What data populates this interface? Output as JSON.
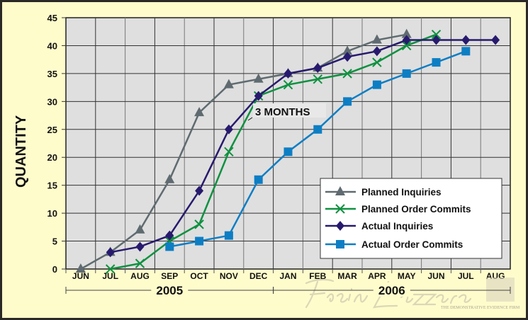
{
  "chart_data": {
    "type": "line",
    "title": "",
    "ylabel": "QUANTITY",
    "xlabel": "",
    "ylim": [
      0,
      45
    ],
    "yticks": [
      0,
      5,
      10,
      15,
      20,
      25,
      30,
      35,
      40,
      45
    ],
    "grid": true,
    "legend_position": "bottom-right",
    "categories": [
      "JUN",
      "JUL",
      "AUG",
      "SEP",
      "OCT",
      "NOV",
      "DEC",
      "JAN",
      "FEB",
      "MAR",
      "APR",
      "MAY",
      "JUN",
      "JUL",
      "AUG"
    ],
    "year_groups": [
      {
        "label": "2005",
        "from": "JUN",
        "to": "DEC"
      },
      {
        "label": "2006",
        "from": "JAN",
        "to": "AUG"
      }
    ],
    "series": [
      {
        "name": "Planned Inquiries",
        "marker": "triangle",
        "color": "#5f6b70",
        "values": [
          0,
          3,
          7,
          16,
          28,
          33,
          34,
          35,
          36,
          39,
          41,
          42,
          null,
          null,
          null
        ]
      },
      {
        "name": "Planned Order Commits",
        "marker": "x",
        "color": "#0f9140",
        "values": [
          null,
          0,
          1,
          5,
          8,
          21,
          31,
          33,
          34,
          35,
          37,
          40,
          42,
          null,
          null
        ]
      },
      {
        "name": "Actual Inquiries",
        "marker": "diamond",
        "color": "#271a6e",
        "values": [
          null,
          3,
          4,
          6,
          14,
          25,
          31,
          35,
          36,
          38,
          39,
          41,
          41,
          41,
          41
        ]
      },
      {
        "name": "Actual Order Commits",
        "marker": "square",
        "color": "#0d7ec4",
        "values": [
          null,
          null,
          null,
          4,
          5,
          6,
          16,
          21,
          25,
          30,
          33,
          35,
          37,
          39,
          null
        ]
      }
    ],
    "annotations": [
      {
        "text": "3 MONTHS"
      }
    ]
  },
  "watermark": {
    "logo": "Frein Lazzara",
    "tagline": "THE DEMONSTRATIVE EVIDENCE FIRM"
  }
}
